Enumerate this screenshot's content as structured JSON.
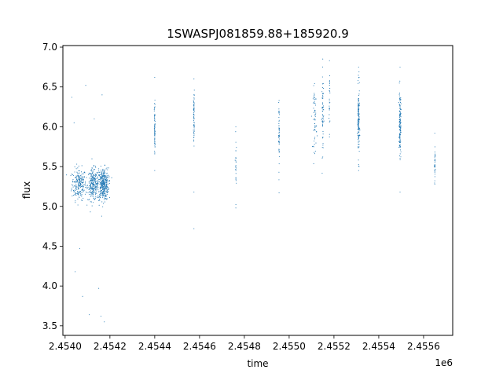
{
  "chart_data": {
    "type": "scatter",
    "title": "1SWASPJ081859.88+185920.9",
    "xlabel": "time",
    "ylabel": "flux",
    "x_offset_text": "1e6",
    "xlim": [
      2453990,
      2455730
    ],
    "ylim": [
      3.38,
      7.02
    ],
    "xticks": [
      2454000,
      2454200,
      2454400,
      2454600,
      2454800,
      2455000,
      2455200,
      2455400,
      2455600
    ],
    "xtick_labels": [
      "2.4540",
      "2.4542",
      "2.4544",
      "2.4546",
      "2.4548",
      "2.4550",
      "2.4552",
      "2.4554",
      "2.4556"
    ],
    "yticks": [
      3.5,
      4.0,
      4.5,
      5.0,
      5.5,
      6.0,
      6.5,
      7.0
    ],
    "ytick_labels": [
      "3.5",
      "4.0",
      "4.5",
      "5.0",
      "5.5",
      "6.0",
      "6.5",
      "7.0"
    ],
    "grid": false,
    "marker_color": "#1f77b4",
    "series": [
      {
        "clusters": [
          {
            "x": 2454062,
            "y": 5.28,
            "spread_x": 16,
            "spread_y": 0.1,
            "n": 220
          },
          {
            "x": 2454125,
            "y": 5.27,
            "spread_x": 12,
            "spread_y": 0.1,
            "n": 240
          },
          {
            "x": 2454170,
            "y": 5.28,
            "spread_x": 12,
            "spread_y": 0.1,
            "n": 380
          },
          {
            "x": 2454400,
            "y": 5.95,
            "spread_x": 1,
            "spread_y": 0.18,
            "n": 70
          },
          {
            "x": 2454575,
            "y": 6.15,
            "spread_x": 1,
            "spread_y": 0.15,
            "n": 60
          },
          {
            "x": 2454762,
            "y": 5.5,
            "spread_x": 1,
            "spread_y": 0.2,
            "n": 25
          },
          {
            "x": 2454955,
            "y": 5.9,
            "spread_x": 1,
            "spread_y": 0.18,
            "n": 50
          },
          {
            "x": 2455115,
            "y": 6.1,
            "spread_x": 4,
            "spread_y": 0.2,
            "n": 60
          },
          {
            "x": 2455150,
            "y": 6.15,
            "spread_x": 2,
            "spread_y": 0.25,
            "n": 60
          },
          {
            "x": 2455180,
            "y": 6.35,
            "spread_x": 1,
            "spread_y": 0.2,
            "n": 25
          },
          {
            "x": 2455310,
            "y": 6.05,
            "spread_x": 2,
            "spread_y": 0.22,
            "n": 150
          },
          {
            "x": 2455495,
            "y": 6.05,
            "spread_x": 2,
            "spread_y": 0.2,
            "n": 150
          },
          {
            "x": 2455650,
            "y": 5.5,
            "spread_x": 1,
            "spread_y": 0.12,
            "n": 30
          }
        ],
        "outliers": [
          {
            "x": 2454030,
            "y": 6.37
          },
          {
            "x": 2454040,
            "y": 6.05
          },
          {
            "x": 2454045,
            "y": 4.18
          },
          {
            "x": 2454065,
            "y": 4.47
          },
          {
            "x": 2454078,
            "y": 3.87
          },
          {
            "x": 2454092,
            "y": 6.52
          },
          {
            "x": 2454108,
            "y": 3.64
          },
          {
            "x": 2454150,
            "y": 3.97
          },
          {
            "x": 2454160,
            "y": 3.62
          },
          {
            "x": 2454175,
            "y": 3.55
          },
          {
            "x": 2454165,
            "y": 6.4
          },
          {
            "x": 2454130,
            "y": 6.1
          },
          {
            "x": 2454400,
            "y": 6.62
          },
          {
            "x": 2454400,
            "y": 5.45
          },
          {
            "x": 2454575,
            "y": 6.6
          },
          {
            "x": 2454575,
            "y": 5.18
          },
          {
            "x": 2454575,
            "y": 4.72
          },
          {
            "x": 2454762,
            "y": 6.0
          },
          {
            "x": 2454762,
            "y": 4.98
          },
          {
            "x": 2454955,
            "y": 6.33
          },
          {
            "x": 2454955,
            "y": 5.17
          },
          {
            "x": 2455150,
            "y": 6.85
          },
          {
            "x": 2455180,
            "y": 6.83
          },
          {
            "x": 2455150,
            "y": 5.62
          },
          {
            "x": 2455310,
            "y": 6.75
          },
          {
            "x": 2455310,
            "y": 5.45
          },
          {
            "x": 2455495,
            "y": 6.75
          },
          {
            "x": 2455495,
            "y": 5.18
          },
          {
            "x": 2455650,
            "y": 5.92
          },
          {
            "x": 2455650,
            "y": 5.28
          }
        ]
      }
    ]
  }
}
